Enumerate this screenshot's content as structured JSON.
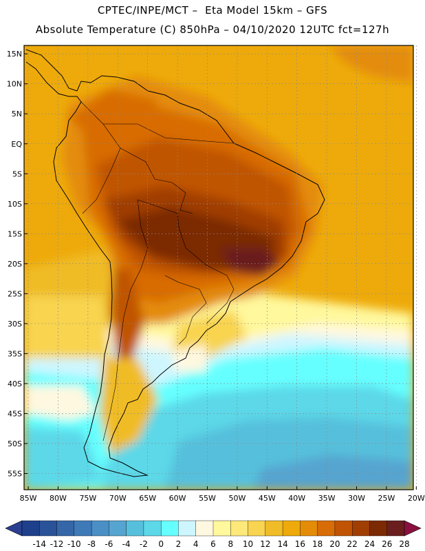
{
  "header": {
    "line1": "CPTEC/INPE/MCT –  Eta Model 15km – GFS",
    "line2": "Absolute Temperature (C) 850hPa – 04/10/2020 12UTC fct=127h"
  },
  "axes": {
    "lat_labels": [
      "15N",
      "10N",
      "5N",
      "EQ",
      "5S",
      "10S",
      "15S",
      "20S",
      "25S",
      "30S",
      "35S",
      "40S",
      "45S",
      "50S",
      "55S"
    ],
    "lat_values": [
      15,
      10,
      5,
      0,
      -5,
      -10,
      -15,
      -20,
      -25,
      -30,
      -35,
      -40,
      -45,
      -50,
      -55
    ],
    "lon_labels": [
      "85W",
      "80W",
      "75W",
      "70W",
      "65W",
      "60W",
      "55W",
      "50W",
      "45W",
      "40W",
      "35W",
      "30W",
      "25W",
      "20W"
    ],
    "lon_values": [
      -85,
      -80,
      -75,
      -70,
      -65,
      -60,
      -55,
      -50,
      -45,
      -40,
      -35,
      -30,
      -25,
      -20
    ],
    "lat_range": [
      -57.7,
      16.4
    ],
    "lon_range": [
      -85.7,
      -20.5
    ]
  },
  "colorbar": {
    "labels": [
      "-14",
      "-12",
      "-10",
      "-8",
      "-6",
      "-4",
      "-2",
      "0",
      "2",
      "4",
      "6",
      "8",
      "10",
      "12",
      "14",
      "16",
      "18",
      "20",
      "22",
      "24",
      "26",
      "28"
    ],
    "colors": [
      "#1e3f8c",
      "#2a5298",
      "#3566a8",
      "#3f7ab8",
      "#4a8fc6",
      "#56a4d0",
      "#56c0dc",
      "#5cd8e8",
      "#66ffff",
      "#cdf6ff",
      "#fff8e0",
      "#fff89c",
      "#fde87a",
      "#f8d450",
      "#f0bc28",
      "#eeaa0a",
      "#e48c08",
      "#d86c06",
      "#c05404",
      "#a03e04",
      "#7c2a04",
      "#6a1e1e"
    ],
    "under_color": "#2a3f90",
    "over_color": "#8a1040"
  },
  "map_fields": {
    "ocean_color": "#eeaa0a",
    "palette": {
      "yellow": "#f8d450",
      "gold": "#f0bc28",
      "orange": "#e48c08",
      "dark_orange": "#d86c06",
      "burnt": "#c05404",
      "brown": "#a03e04",
      "dark_brown": "#7c2a04",
      "maroon": "#6a1e1e",
      "pale_yellow": "#fff89c",
      "cream": "#fff8e0",
      "pale_cyan": "#cdf6ff",
      "cyan": "#66ffff",
      "light_blue": "#5cd8e8",
      "sky": "#56c0dc",
      "blue": "#56a4d0",
      "mid_blue": "#4a8fc6"
    }
  }
}
